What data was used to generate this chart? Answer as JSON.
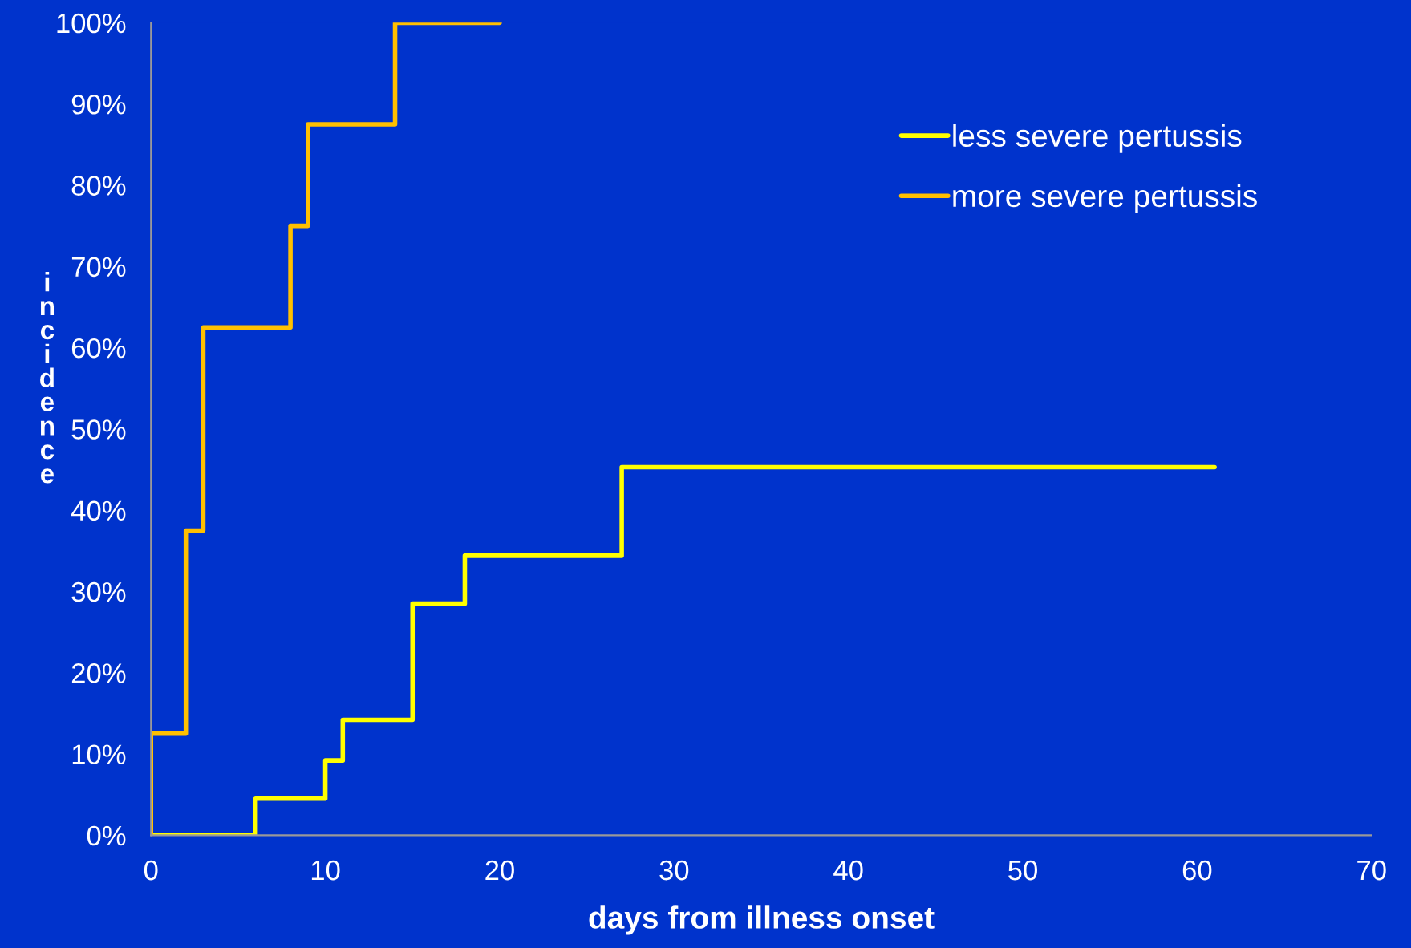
{
  "chart_data": {
    "type": "step",
    "xlabel": "days from illness onset",
    "ylabel": "incidence",
    "xlim": [
      0,
      70
    ],
    "xticks": [
      0,
      10,
      20,
      30,
      40,
      50,
      60,
      70
    ],
    "ylim": [
      0,
      100
    ],
    "yticks": [
      {
        "value": 0,
        "label": "0%"
      },
      {
        "value": 10,
        "label": "10%"
      },
      {
        "value": 20,
        "label": "20%"
      },
      {
        "value": 30,
        "label": "30%"
      },
      {
        "value": 40,
        "label": "40%"
      },
      {
        "value": 50,
        "label": "50%"
      },
      {
        "value": 60,
        "label": "60%"
      },
      {
        "value": 70,
        "label": "70%"
      },
      {
        "value": 80,
        "label": "80%"
      },
      {
        "value": 90,
        "label": "90%"
      },
      {
        "value": 100,
        "label": "100%"
      }
    ],
    "grid": false,
    "legend": "top right",
    "marker": "none",
    "line_style": "solid",
    "series": [
      {
        "name": "less severe pertussis",
        "color": "#ffff00",
        "x": [
          0,
          6,
          10,
          11,
          15,
          18,
          27,
          61
        ],
        "values": [
          0,
          4.5,
          9.2,
          14.2,
          28.5,
          34.4,
          45.3,
          45.3
        ]
      },
      {
        "name": "more severe pertussis",
        "color": "#ffc000",
        "x": [
          0,
          0,
          2,
          3,
          8,
          9,
          14,
          20
        ],
        "values": [
          0,
          12.5,
          37.5,
          62.5,
          75,
          87.5,
          100,
          100
        ]
      }
    ]
  }
}
